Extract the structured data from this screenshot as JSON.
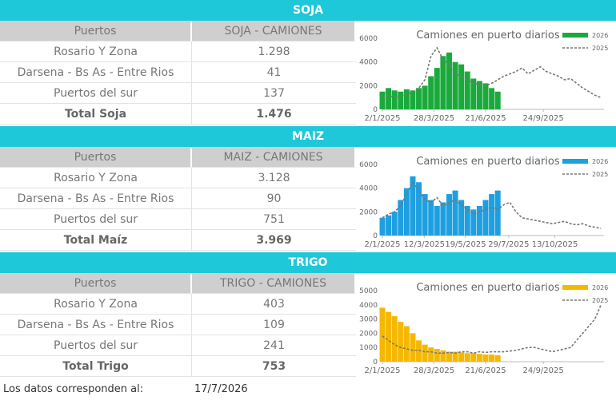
{
  "sections": [
    {
      "title": "SOJA",
      "columns": [
        "Puertos",
        "SOJA - CAMIONES"
      ],
      "rows": [
        [
          "Rosario Y Zona",
          "1.298"
        ],
        [
          "Darsena - Bs As - Entre Rios",
          "41"
        ],
        [
          "Puertos del sur",
          "137"
        ]
      ],
      "total": [
        "Total Soja",
        "1.476"
      ]
    },
    {
      "title": "MAIZ",
      "columns": [
        "Puertos",
        "MAIZ - CAMIONES"
      ],
      "rows": [
        [
          "Rosario Y Zona",
          "3.128"
        ],
        [
          "Darsena - Bs As - Entre Rios",
          "90"
        ],
        [
          "Puertos del sur",
          "751"
        ]
      ],
      "total": [
        "Total Maíz",
        "3.969"
      ]
    },
    {
      "title": "TRIGO",
      "columns": [
        "Puertos",
        "TRIGO - CAMIONES"
      ],
      "rows": [
        [
          "Rosario Y Zona",
          "403"
        ],
        [
          "Darsena - Bs As - Entre Rios",
          "109"
        ],
        [
          "Puertos del sur",
          "241"
        ]
      ],
      "total": [
        "Total Trigo",
        "753"
      ]
    }
  ],
  "footer": {
    "label": "Los datos corresponden al:",
    "date": "17/7/2026"
  },
  "chart_data": [
    {
      "type": "combo",
      "title": "Camiones en puerto diarios",
      "xlim": [
        0,
        365
      ],
      "ylim": [
        0,
        6000
      ],
      "yticks": [
        0,
        2000,
        4000,
        6000
      ],
      "xticks": [
        {
          "value": 0,
          "label": "2/1/2025"
        },
        {
          "value": 85,
          "label": "28/3/2025"
        },
        {
          "value": 170,
          "label": "21/6/2025"
        },
        {
          "value": 265,
          "label": "24/9/2025"
        }
      ],
      "x": [
        0,
        10,
        20,
        30,
        40,
        50,
        60,
        70,
        80,
        90,
        100,
        110,
        120,
        130,
        140,
        150,
        160,
        170,
        180,
        190,
        200,
        210,
        220,
        230,
        240,
        250,
        260,
        270,
        280,
        290,
        300,
        310,
        320,
        330,
        340,
        350,
        360
      ],
      "series": [
        {
          "name": "2026",
          "color": "#1aaa3c",
          "values": [
            1500,
            1800,
            1600,
            1500,
            1700,
            1600,
            1800,
            2000,
            2800,
            3500,
            4500,
            4800,
            4000,
            3800,
            3200,
            2600,
            2400,
            2200,
            1800,
            1500,
            null,
            null,
            null,
            null,
            null,
            null,
            null,
            null,
            null,
            null,
            null,
            null,
            null,
            null,
            null,
            null,
            null
          ]
        },
        {
          "name": "2025",
          "color": "#777777",
          "values": [
            1000,
            1200,
            1000,
            1100,
            1300,
            1400,
            1800,
            2500,
            4500,
            5200,
            4200,
            3800,
            3000,
            2800,
            2500,
            2200,
            2100,
            2000,
            2200,
            2500,
            2800,
            3000,
            3200,
            3500,
            3000,
            3300,
            3600,
            3200,
            3000,
            2800,
            2500,
            2600,
            2200,
            1800,
            1500,
            1200,
            1000
          ]
        }
      ]
    },
    {
      "type": "combo",
      "title": "Camiones en puerto diarios",
      "xlim": [
        0,
        365
      ],
      "ylim": [
        0,
        6000
      ],
      "yticks": [
        0,
        2000,
        4000,
        6000
      ],
      "xticks": [
        {
          "value": 0,
          "label": "2/1/2025"
        },
        {
          "value": 69,
          "label": "12/3/2025"
        },
        {
          "value": 137,
          "label": "19/5/2025"
        },
        {
          "value": 208,
          "label": "29/7/2025"
        },
        {
          "value": 284,
          "label": "13/10/2025"
        }
      ],
      "x": [
        0,
        10,
        20,
        30,
        40,
        50,
        60,
        70,
        80,
        90,
        100,
        110,
        120,
        130,
        140,
        150,
        160,
        170,
        180,
        190,
        200,
        210,
        220,
        230,
        240,
        250,
        260,
        270,
        280,
        290,
        300,
        310,
        320,
        330,
        340,
        350,
        360
      ],
      "series": [
        {
          "name": "2026",
          "color": "#1e9fe0",
          "values": [
            1500,
            1700,
            2000,
            3000,
            4000,
            5000,
            4500,
            3500,
            3000,
            2500,
            2800,
            3500,
            3800,
            3000,
            2500,
            2200,
            2500,
            3000,
            3500,
            3800,
            null,
            null,
            null,
            null,
            null,
            null,
            null,
            null,
            null,
            null,
            null,
            null,
            null,
            null,
            null,
            null,
            null
          ]
        },
        {
          "name": "2025",
          "color": "#777777",
          "values": [
            1500,
            1800,
            2000,
            2500,
            3500,
            4500,
            3800,
            3000,
            2800,
            3200,
            2500,
            2800,
            3000,
            2600,
            2200,
            1800,
            2000,
            2200,
            2400,
            2200,
            2600,
            2800,
            2000,
            1500,
            1400,
            1300,
            1200,
            1100,
            1000,
            1100,
            1200,
            1000,
            900,
            1000,
            800,
            700,
            600
          ]
        }
      ]
    },
    {
      "type": "combo",
      "title": "Camiones en puerto diarios",
      "xlim": [
        0,
        365
      ],
      "ylim": [
        0,
        5000
      ],
      "yticks": [
        0,
        1000,
        2000,
        3000,
        4000,
        5000
      ],
      "xticks": [
        {
          "value": 0,
          "label": "2/1/2025"
        },
        {
          "value": 85,
          "label": "28/3/2025"
        },
        {
          "value": 170,
          "label": "21/6/2025"
        },
        {
          "value": 265,
          "label": "24/9/2025"
        }
      ],
      "x": [
        0,
        10,
        20,
        30,
        40,
        50,
        60,
        70,
        80,
        90,
        100,
        110,
        120,
        130,
        140,
        150,
        160,
        170,
        180,
        190,
        200,
        210,
        220,
        230,
        240,
        250,
        260,
        270,
        280,
        290,
        300,
        310,
        320,
        330,
        340,
        350,
        360
      ],
      "series": [
        {
          "name": "2026",
          "color": "#f5b800",
          "values": [
            3800,
            3500,
            3200,
            2800,
            2500,
            2000,
            1500,
            1200,
            1000,
            900,
            800,
            700,
            700,
            650,
            600,
            600,
            550,
            500,
            500,
            450,
            null,
            null,
            null,
            null,
            null,
            null,
            null,
            null,
            null,
            null,
            null,
            null,
            null,
            null,
            null,
            null,
            null
          ]
        },
        {
          "name": "2025",
          "color": "#777777",
          "values": [
            1800,
            1500,
            1200,
            1000,
            900,
            800,
            800,
            700,
            700,
            600,
            600,
            650,
            600,
            700,
            700,
            600,
            700,
            650,
            700,
            700,
            700,
            750,
            800,
            900,
            1000,
            1000,
            900,
            800,
            700,
            800,
            900,
            1000,
            1500,
            2000,
            2500,
            3000,
            4000
          ]
        }
      ]
    }
  ]
}
